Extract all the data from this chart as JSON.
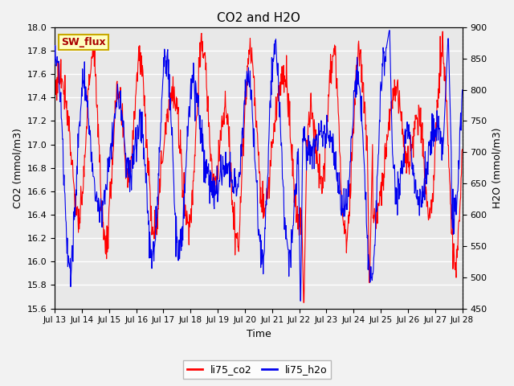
{
  "title": "CO2 and H2O",
  "xlabel": "Time",
  "ylabel_left": "CO2 (mmol/m3)",
  "ylabel_right": "H2O (mmol/m3)",
  "ylim_left": [
    15.6,
    18.0
  ],
  "ylim_right": [
    450,
    900
  ],
  "yticks_left": [
    15.6,
    15.8,
    16.0,
    16.2,
    16.4,
    16.6,
    16.8,
    17.0,
    17.2,
    17.4,
    17.6,
    17.8,
    18.0
  ],
  "yticks_right": [
    450,
    500,
    550,
    600,
    650,
    700,
    750,
    800,
    850,
    900
  ],
  "xticklabels": [
    "Jul 13",
    "Jul 14",
    "Jul 15",
    "Jul 16",
    "Jul 17",
    "Jul 18",
    "Jul 19",
    "Jul 20",
    "Jul 21",
    "Jul 22",
    "Jul 23",
    "Jul 24",
    "Jul 25",
    "Jul 26",
    "Jul 27",
    "Jul 28"
  ],
  "color_co2": "#FF0000",
  "color_h2o": "#0000EE",
  "legend_labels": [
    "li75_co2",
    "li75_h2o"
  ],
  "sw_flux_label": "SW_flux",
  "line_width": 0.8,
  "fig_bg": "#F2F2F2",
  "plot_bg": "#E8E8E8",
  "grid_color": "#FFFFFF",
  "n_points": 1000,
  "seed": 77
}
